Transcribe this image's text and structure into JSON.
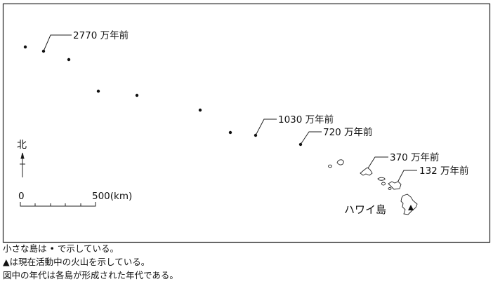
{
  "map": {
    "labels": {
      "l2770": "2770 万年前",
      "l1030": "1030 万年前",
      "l720": "720 万年前",
      "l370": "370 万年前",
      "l132": "132 万年前",
      "hawaii": "ハワイ島"
    },
    "north": "北",
    "scale": {
      "start": "0",
      "end": "500(km)"
    },
    "volcano_icon": "triangle-icon",
    "dot_count": 9
  },
  "captions": [
    "小さな島は • で示している。",
    "▲は現在活動中の火山を示している。",
    "図中の年代は各島が形成された年代である。"
  ]
}
